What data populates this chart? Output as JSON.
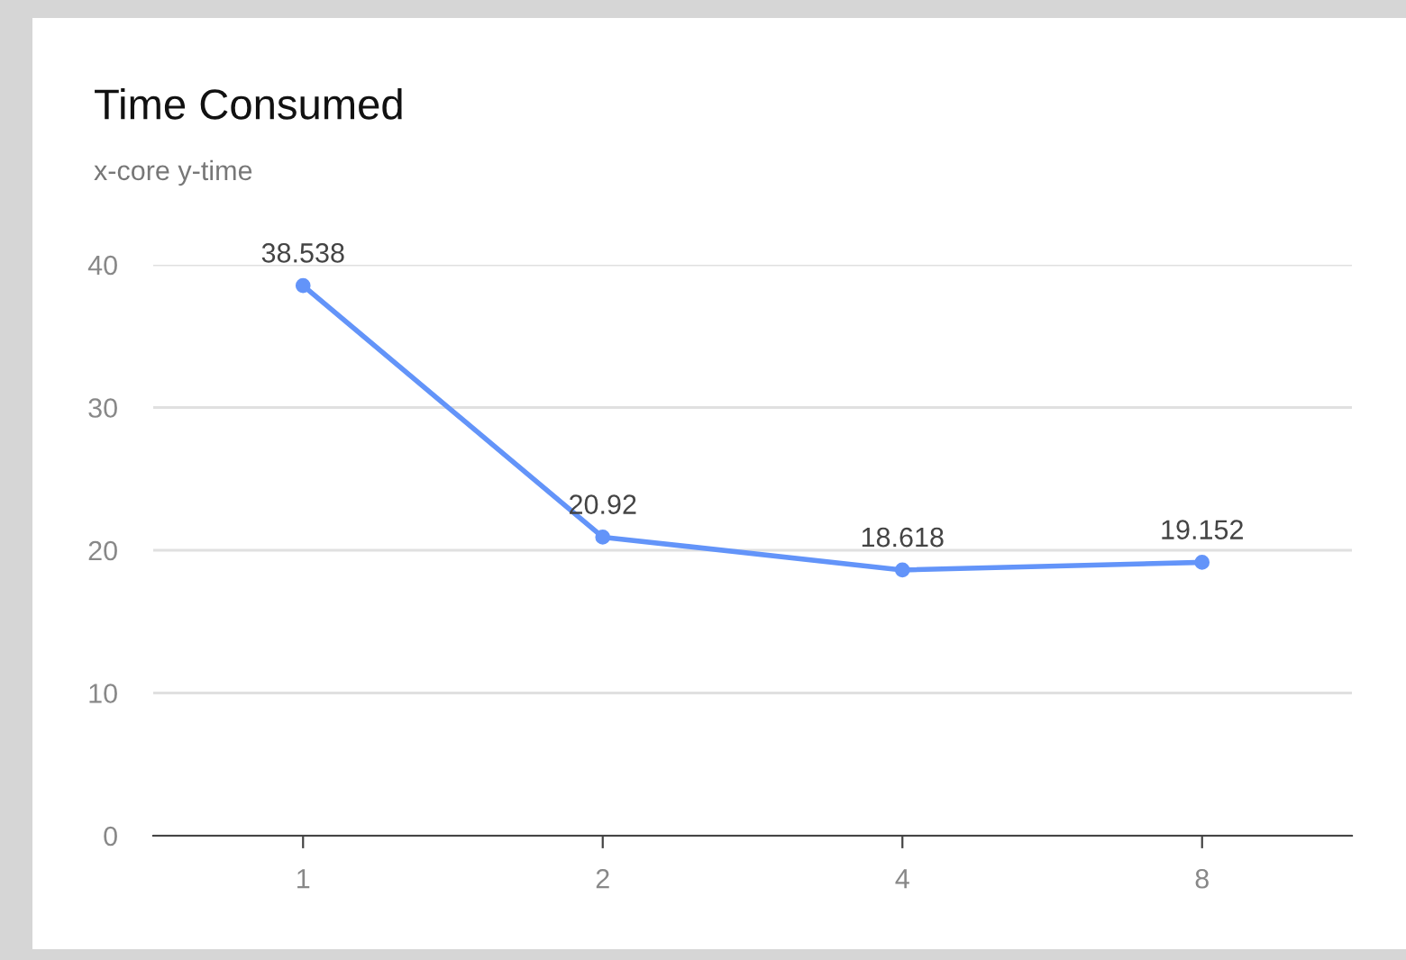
{
  "chart_data": {
    "type": "line",
    "title": "Time Consumed",
    "subtitle": "x-core y-time",
    "categories": [
      "1",
      "2",
      "4",
      "8"
    ],
    "series": [
      {
        "color": "#6394f9",
        "values": [
          38.538,
          20.92,
          18.618,
          19.152
        ]
      }
    ],
    "ylim": [
      0,
      40
    ],
    "yticks": [
      0,
      10,
      20,
      30,
      40
    ],
    "grid": "y",
    "data_labels": true,
    "marker": "circle",
    "line_style": "solid"
  }
}
